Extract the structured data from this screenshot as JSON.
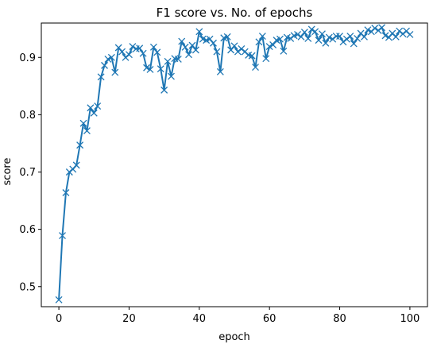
{
  "chart_data": {
    "type": "line",
    "title": "F1 score vs. No. of epochs",
    "xlabel": "epoch",
    "ylabel": "score",
    "xlim": [
      -5,
      105
    ],
    "ylim": [
      0.465,
      0.96
    ],
    "xticks": [
      0,
      20,
      40,
      60,
      80,
      100
    ],
    "yticks": [
      0.5,
      0.6,
      0.7,
      0.8,
      0.9
    ],
    "ytick_labels": [
      "0.5",
      "0.6",
      "0.7",
      "0.8",
      "0.9"
    ],
    "marker": "x",
    "grid": false,
    "series_color": "#1f77b4",
    "series": [
      {
        "x": [
          0,
          1,
          2,
          3,
          4,
          5,
          6,
          7,
          8,
          9,
          10,
          11,
          12,
          13,
          14,
          15,
          16,
          17,
          18,
          19,
          20,
          21,
          22,
          23,
          24,
          25,
          26,
          27,
          28,
          29,
          30,
          31,
          32,
          33,
          34,
          35,
          36,
          37,
          38,
          39,
          40,
          41,
          42,
          43,
          44,
          45,
          46,
          47,
          48,
          49,
          50,
          51,
          52,
          53,
          54,
          55,
          56,
          57,
          58,
          59,
          60,
          61,
          62,
          63,
          64,
          65,
          66,
          67,
          68,
          69,
          70,
          71,
          72,
          73,
          74,
          75,
          76,
          77,
          78,
          79,
          80,
          81,
          82,
          83,
          84,
          85,
          86,
          87,
          88,
          89,
          90,
          91,
          92,
          93,
          94,
          95,
          96,
          97,
          98,
          99,
          100
        ],
        "values": [
          0.477,
          0.589,
          0.664,
          0.7,
          0.705,
          0.712,
          0.747,
          0.785,
          0.772,
          0.812,
          0.803,
          0.815,
          0.866,
          0.886,
          0.897,
          0.9,
          0.874,
          0.917,
          0.91,
          0.9,
          0.905,
          0.919,
          0.915,
          0.916,
          0.907,
          0.882,
          0.879,
          0.918,
          0.909,
          0.88,
          0.843,
          0.893,
          0.867,
          0.898,
          0.897,
          0.928,
          0.918,
          0.905,
          0.921,
          0.913,
          0.945,
          0.932,
          0.93,
          0.932,
          0.925,
          0.91,
          0.875,
          0.934,
          0.936,
          0.913,
          0.92,
          0.91,
          0.915,
          0.91,
          0.904,
          0.903,
          0.883,
          0.927,
          0.937,
          0.898,
          0.919,
          0.922,
          0.93,
          0.932,
          0.911,
          0.935,
          0.933,
          0.938,
          0.94,
          0.936,
          0.944,
          0.933,
          0.949,
          0.945,
          0.93,
          0.941,
          0.925,
          0.935,
          0.932,
          0.937,
          0.937,
          0.927,
          0.932,
          0.937,
          0.924,
          0.933,
          0.942,
          0.936,
          0.948,
          0.945,
          0.951,
          0.947,
          0.952,
          0.938,
          0.935,
          0.942,
          0.936,
          0.946,
          0.941,
          0.946,
          0.94
        ]
      }
    ]
  }
}
